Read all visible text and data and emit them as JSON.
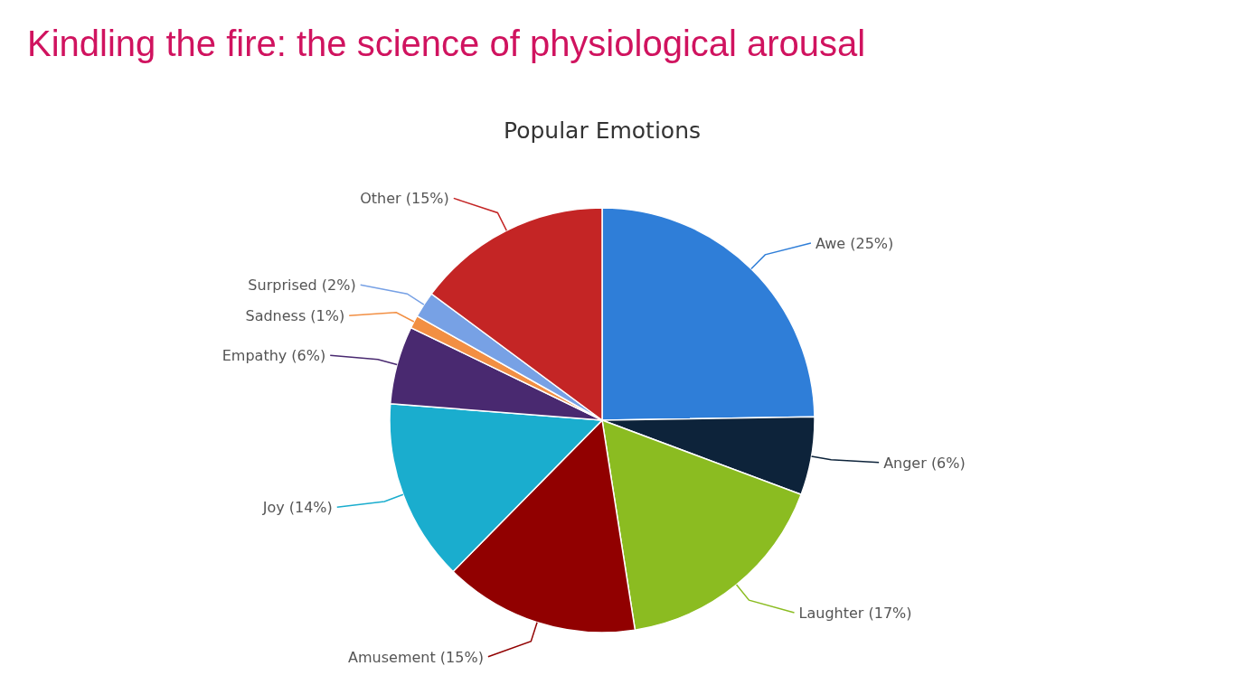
{
  "chart_data": {
    "type": "pie",
    "title": "Kindling the fire: the science of physiological arousal",
    "subtitle": "Popular Emotions",
    "categories": [
      "Awe",
      "Anger",
      "Laughter",
      "Amusement",
      "Joy",
      "Empathy",
      "Sadness",
      "Surprised",
      "Other"
    ],
    "values": [
      25,
      6,
      17,
      15,
      14,
      6,
      1,
      2,
      15
    ],
    "value_labels": [
      "(25%)",
      "(6%)",
      "(17%)",
      "(15%)",
      "(14%)",
      "(6%)",
      "(1%)",
      "(2%)",
      "(15%)"
    ],
    "colors": [
      "#2f7ed8",
      "#0d233a",
      "#8bbc21",
      "#910000",
      "#1aadce",
      "#492970",
      "#f28f43",
      "#77a1e5",
      "#c42525"
    ],
    "legend": false
  }
}
